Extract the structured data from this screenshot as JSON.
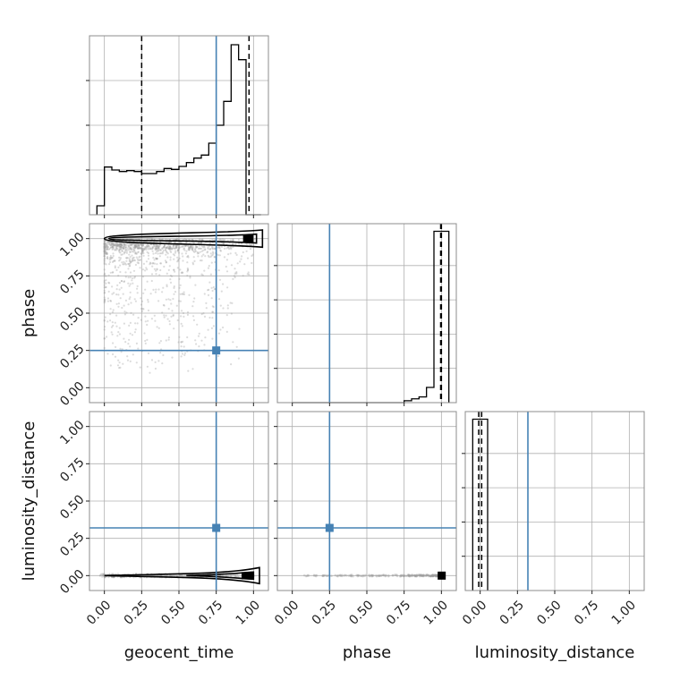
{
  "chart_data": {
    "type": "corner",
    "parameters": [
      "geocent_time",
      "phase",
      "luminosity_distance"
    ],
    "axis_ticks": [
      "0.00",
      "0.25",
      "0.50",
      "0.75",
      "1.00"
    ],
    "truths": {
      "geocent_time": 0.75,
      "phase": 0.25,
      "luminosity_distance": 0.32
    },
    "quantile_lines": {
      "geocent_time": [
        0.25,
        0.97
      ],
      "phase": [
        0.995,
        1.0
      ],
      "luminosity_distance": [
        -0.01,
        0.01
      ]
    },
    "histograms": {
      "geocent_time": {
        "bin_edges": [
          -0.05,
          0.0,
          0.05,
          0.1,
          0.15,
          0.2,
          0.25,
          0.3,
          0.35,
          0.4,
          0.45,
          0.5,
          0.55,
          0.6,
          0.65,
          0.7,
          0.75,
          0.8,
          0.85,
          0.9,
          0.95,
          1.0,
          1.05
        ],
        "counts": [
          3,
          16,
          15,
          14.5,
          14.8,
          14.5,
          13.8,
          13.8,
          14.5,
          15.5,
          15.2,
          16.2,
          17.5,
          19,
          20,
          24,
          30,
          38,
          57,
          52,
          0,
          0
        ]
      },
      "phase": {
        "bin_edges": [
          0.0,
          0.05,
          0.1,
          0.15,
          0.2,
          0.25,
          0.3,
          0.35,
          0.4,
          0.45,
          0.5,
          0.55,
          0.6,
          0.65,
          0.7,
          0.75,
          0.8,
          0.85,
          0.9,
          0.95,
          1.0,
          1.05
        ],
        "counts": [
          0,
          0,
          0,
          0,
          0,
          0,
          0,
          0,
          0,
          0,
          0,
          0,
          0,
          0,
          0,
          0.5,
          1,
          1.5,
          4,
          45,
          45
        ]
      },
      "luminosity_distance": {
        "bin_edges": [
          -0.05,
          0.0,
          0.05
        ],
        "counts": [
          45,
          45
        ]
      }
    }
  }
}
